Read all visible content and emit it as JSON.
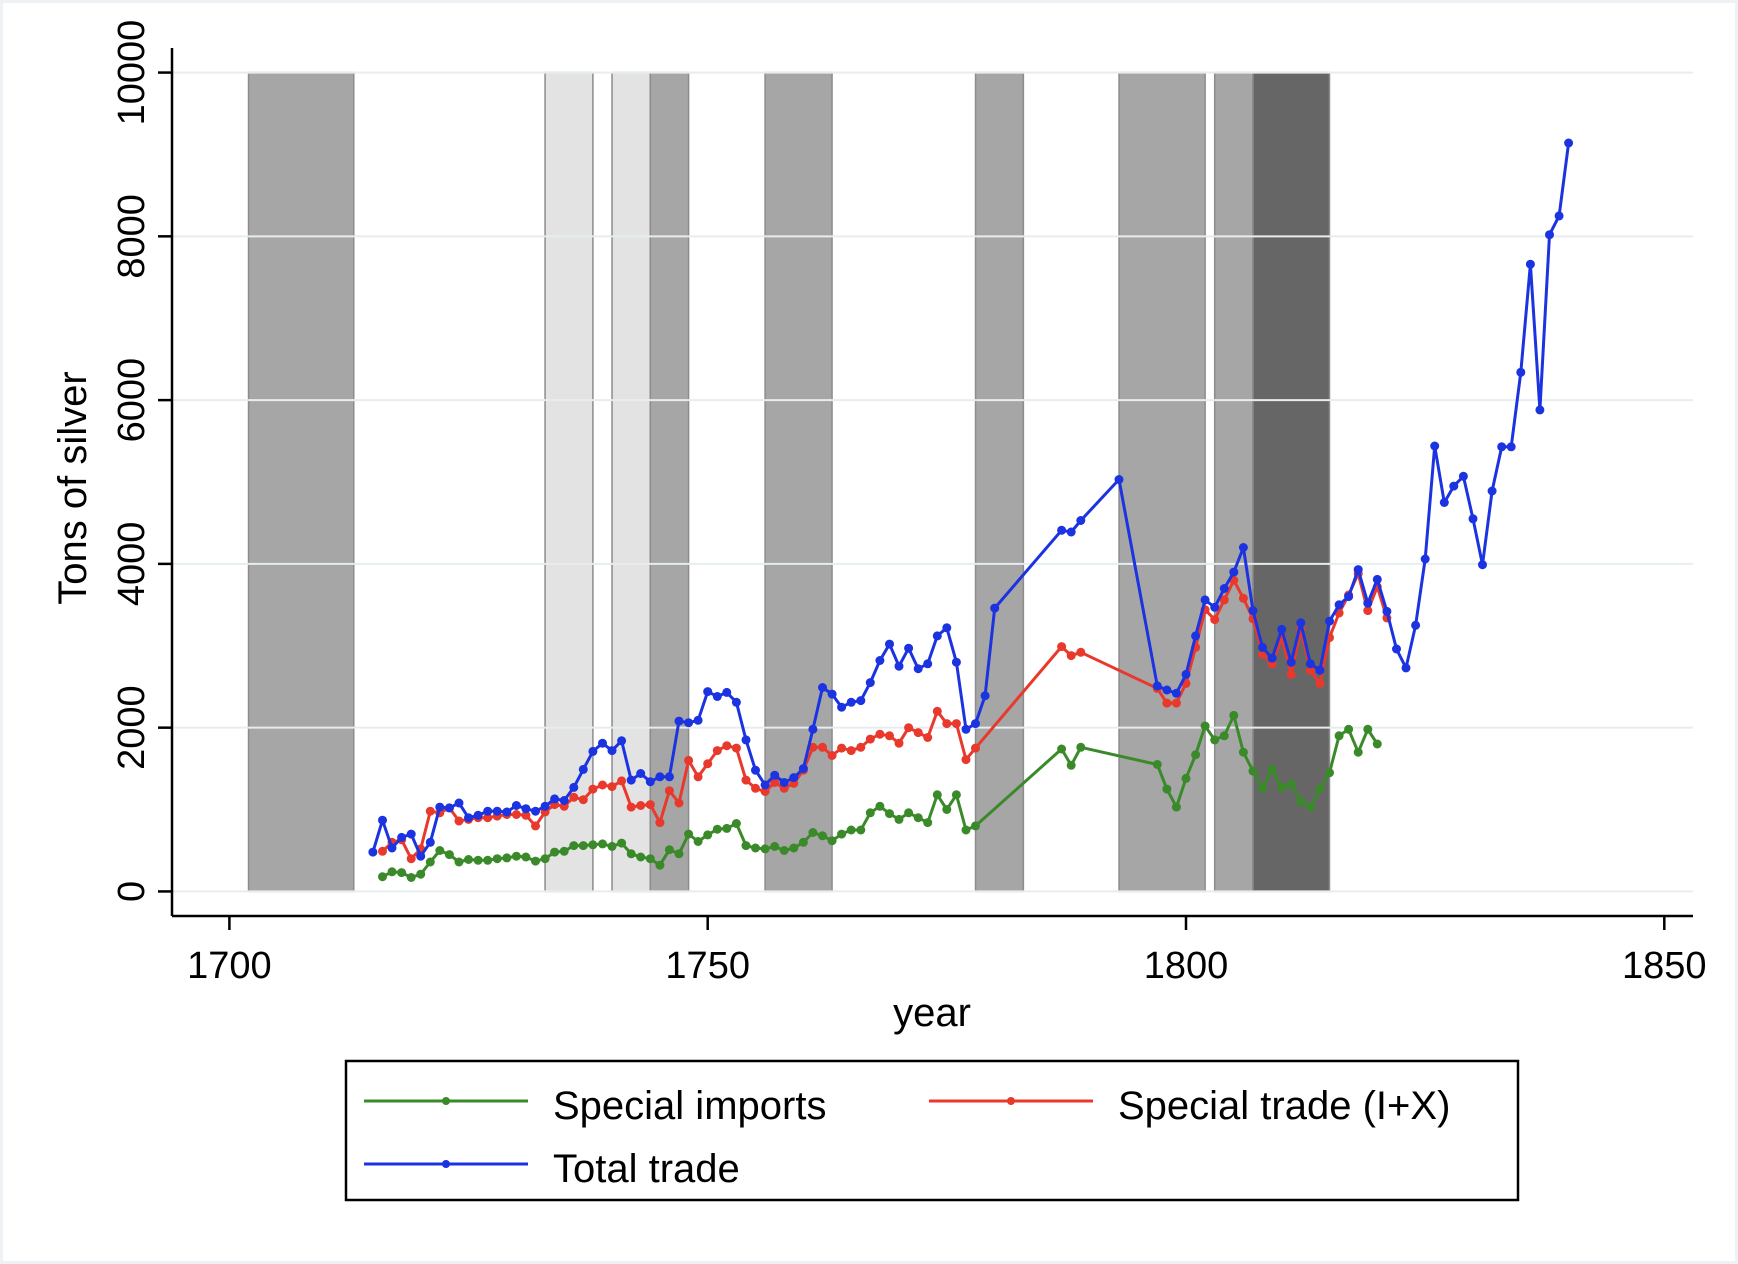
{
  "chart_data": {
    "type": "line",
    "xlabel": "year",
    "ylabel": "Tons of silver",
    "xlim": [
      1694,
      1853
    ],
    "ylim": [
      -300,
      10300
    ],
    "xticks": [
      1700,
      1750,
      1800,
      1850
    ],
    "xtick_labels": [
      "1700",
      "1750",
      "1800",
      "1850"
    ],
    "yticks": [
      0,
      2000,
      4000,
      6000,
      8000,
      10000
    ],
    "ytick_labels": [
      "0",
      "2000",
      "4000",
      "6000",
      "8000",
      "10000"
    ],
    "grid": "horizontal",
    "legend_placement": "bottom",
    "shaded_periods": [
      {
        "start": 1702,
        "end": 1713,
        "shade": "#a6a6a6"
      },
      {
        "start": 1733,
        "end": 1738,
        "shade": "#e3e3e3"
      },
      {
        "start": 1740,
        "end": 1744,
        "shade": "#e3e3e3"
      },
      {
        "start": 1744,
        "end": 1748,
        "shade": "#a6a6a6"
      },
      {
        "start": 1756,
        "end": 1763,
        "shade": "#a6a6a6"
      },
      {
        "start": 1778,
        "end": 1783,
        "shade": "#a6a6a6"
      },
      {
        "start": 1793,
        "end": 1802,
        "shade": "#a6a6a6"
      },
      {
        "start": 1803,
        "end": 1807,
        "shade": "#a6a6a6"
      },
      {
        "start": 1807,
        "end": 1815,
        "shade": "#666666"
      }
    ],
    "series": [
      {
        "name": "Special imports",
        "color": "#3a8a2a",
        "points": [
          [
            1716,
            180
          ],
          [
            1717,
            240
          ],
          [
            1718,
            230
          ],
          [
            1719,
            170
          ],
          [
            1720,
            210
          ],
          [
            1721,
            360
          ],
          [
            1722,
            500
          ],
          [
            1723,
            450
          ],
          [
            1724,
            360
          ],
          [
            1725,
            390
          ],
          [
            1726,
            380
          ],
          [
            1727,
            380
          ],
          [
            1728,
            400
          ],
          [
            1729,
            410
          ],
          [
            1730,
            430
          ],
          [
            1731,
            420
          ],
          [
            1732,
            370
          ],
          [
            1733,
            400
          ],
          [
            1734,
            480
          ],
          [
            1735,
            490
          ],
          [
            1736,
            560
          ],
          [
            1737,
            560
          ],
          [
            1738,
            570
          ],
          [
            1739,
            580
          ],
          [
            1740,
            550
          ],
          [
            1741,
            590
          ],
          [
            1742,
            460
          ],
          [
            1743,
            420
          ],
          [
            1744,
            400
          ],
          [
            1745,
            320
          ],
          [
            1746,
            510
          ],
          [
            1747,
            460
          ],
          [
            1748,
            700
          ],
          [
            1749,
            610
          ],
          [
            1750,
            690
          ],
          [
            1751,
            760
          ],
          [
            1752,
            770
          ],
          [
            1753,
            830
          ],
          [
            1754,
            560
          ],
          [
            1755,
            530
          ],
          [
            1756,
            520
          ],
          [
            1757,
            550
          ],
          [
            1758,
            500
          ],
          [
            1759,
            530
          ],
          [
            1760,
            600
          ],
          [
            1761,
            720
          ],
          [
            1762,
            680
          ],
          [
            1763,
            620
          ],
          [
            1764,
            700
          ],
          [
            1765,
            750
          ],
          [
            1766,
            750
          ],
          [
            1767,
            960
          ],
          [
            1768,
            1040
          ],
          [
            1769,
            950
          ],
          [
            1770,
            880
          ],
          [
            1771,
            960
          ],
          [
            1772,
            900
          ],
          [
            1773,
            840
          ],
          [
            1774,
            1180
          ],
          [
            1775,
            1000
          ],
          [
            1776,
            1180
          ],
          [
            1777,
            750
          ],
          [
            1778,
            800
          ],
          [
            1787,
            1740
          ],
          [
            1788,
            1540
          ],
          [
            1789,
            1760
          ],
          [
            1797,
            1550
          ],
          [
            1798,
            1250
          ],
          [
            1799,
            1030
          ],
          [
            1800,
            1380
          ],
          [
            1801,
            1670
          ],
          [
            1802,
            2020
          ],
          [
            1803,
            1850
          ],
          [
            1804,
            1900
          ],
          [
            1805,
            2150
          ],
          [
            1806,
            1700
          ],
          [
            1807,
            1470
          ],
          [
            1808,
            1260
          ],
          [
            1809,
            1490
          ],
          [
            1810,
            1270
          ],
          [
            1811,
            1310
          ],
          [
            1812,
            1100
          ],
          [
            1813,
            1030
          ],
          [
            1814,
            1250
          ],
          [
            1815,
            1450
          ],
          [
            1816,
            1900
          ],
          [
            1817,
            1980
          ],
          [
            1818,
            1700
          ],
          [
            1819,
            1980
          ],
          [
            1820,
            1800
          ]
        ]
      },
      {
        "name": "Special trade (I+X)",
        "color": "#e8392c",
        "points": [
          [
            1716,
            490
          ],
          [
            1717,
            600
          ],
          [
            1718,
            630
          ],
          [
            1719,
            400
          ],
          [
            1720,
            520
          ],
          [
            1721,
            980
          ],
          [
            1722,
            960
          ],
          [
            1723,
            1020
          ],
          [
            1724,
            860
          ],
          [
            1725,
            880
          ],
          [
            1726,
            900
          ],
          [
            1727,
            900
          ],
          [
            1728,
            920
          ],
          [
            1729,
            940
          ],
          [
            1730,
            940
          ],
          [
            1731,
            930
          ],
          [
            1732,
            800
          ],
          [
            1733,
            970
          ],
          [
            1734,
            1060
          ],
          [
            1735,
            1040
          ],
          [
            1736,
            1150
          ],
          [
            1737,
            1120
          ],
          [
            1738,
            1250
          ],
          [
            1739,
            1300
          ],
          [
            1740,
            1280
          ],
          [
            1741,
            1350
          ],
          [
            1742,
            1030
          ],
          [
            1743,
            1050
          ],
          [
            1744,
            1060
          ],
          [
            1745,
            840
          ],
          [
            1746,
            1230
          ],
          [
            1747,
            1080
          ],
          [
            1748,
            1600
          ],
          [
            1749,
            1400
          ],
          [
            1750,
            1560
          ],
          [
            1751,
            1720
          ],
          [
            1752,
            1780
          ],
          [
            1753,
            1750
          ],
          [
            1754,
            1360
          ],
          [
            1755,
            1260
          ],
          [
            1756,
            1220
          ],
          [
            1757,
            1330
          ],
          [
            1758,
            1260
          ],
          [
            1759,
            1320
          ],
          [
            1760,
            1480
          ],
          [
            1761,
            1760
          ],
          [
            1762,
            1760
          ],
          [
            1763,
            1660
          ],
          [
            1764,
            1750
          ],
          [
            1765,
            1720
          ],
          [
            1766,
            1760
          ],
          [
            1767,
            1860
          ],
          [
            1768,
            1920
          ],
          [
            1769,
            1900
          ],
          [
            1770,
            1810
          ],
          [
            1771,
            2000
          ],
          [
            1772,
            1940
          ],
          [
            1773,
            1880
          ],
          [
            1774,
            2200
          ],
          [
            1775,
            2050
          ],
          [
            1776,
            2050
          ],
          [
            1777,
            1610
          ],
          [
            1778,
            1750
          ],
          [
            1787,
            2990
          ],
          [
            1788,
            2880
          ],
          [
            1789,
            2920
          ],
          [
            1797,
            2480
          ],
          [
            1798,
            2300
          ],
          [
            1799,
            2300
          ],
          [
            1800,
            2540
          ],
          [
            1801,
            2980
          ],
          [
            1802,
            3440
          ],
          [
            1803,
            3320
          ],
          [
            1804,
            3560
          ],
          [
            1805,
            3800
          ],
          [
            1806,
            3580
          ],
          [
            1807,
            3330
          ],
          [
            1808,
            2900
          ],
          [
            1809,
            2780
          ],
          [
            1810,
            3100
          ],
          [
            1811,
            2650
          ],
          [
            1812,
            3200
          ],
          [
            1813,
            2700
          ],
          [
            1814,
            2540
          ],
          [
            1815,
            3100
          ],
          [
            1816,
            3400
          ],
          [
            1817,
            3620
          ],
          [
            1818,
            3880
          ],
          [
            1819,
            3430
          ],
          [
            1820,
            3720
          ],
          [
            1821,
            3340
          ]
        ]
      },
      {
        "name": "Total trade",
        "color": "#1b33e0",
        "points": [
          [
            1715,
            480
          ],
          [
            1716,
            870
          ],
          [
            1717,
            530
          ],
          [
            1718,
            660
          ],
          [
            1719,
            700
          ],
          [
            1720,
            430
          ],
          [
            1721,
            600
          ],
          [
            1722,
            1030
          ],
          [
            1723,
            1020
          ],
          [
            1724,
            1080
          ],
          [
            1725,
            900
          ],
          [
            1726,
            930
          ],
          [
            1727,
            980
          ],
          [
            1728,
            980
          ],
          [
            1729,
            970
          ],
          [
            1730,
            1050
          ],
          [
            1731,
            1010
          ],
          [
            1732,
            980
          ],
          [
            1733,
            1040
          ],
          [
            1734,
            1130
          ],
          [
            1735,
            1110
          ],
          [
            1736,
            1270
          ],
          [
            1737,
            1490
          ],
          [
            1738,
            1710
          ],
          [
            1739,
            1810
          ],
          [
            1740,
            1720
          ],
          [
            1741,
            1840
          ],
          [
            1742,
            1360
          ],
          [
            1743,
            1440
          ],
          [
            1744,
            1340
          ],
          [
            1745,
            1400
          ],
          [
            1746,
            1400
          ],
          [
            1747,
            2080
          ],
          [
            1748,
            2060
          ],
          [
            1749,
            2090
          ],
          [
            1750,
            2440
          ],
          [
            1751,
            2380
          ],
          [
            1752,
            2430
          ],
          [
            1753,
            2310
          ],
          [
            1754,
            1850
          ],
          [
            1755,
            1480
          ],
          [
            1756,
            1300
          ],
          [
            1757,
            1420
          ],
          [
            1758,
            1330
          ],
          [
            1759,
            1390
          ],
          [
            1760,
            1500
          ],
          [
            1761,
            1980
          ],
          [
            1762,
            2490
          ],
          [
            1763,
            2410
          ],
          [
            1764,
            2250
          ],
          [
            1765,
            2310
          ],
          [
            1766,
            2330
          ],
          [
            1767,
            2550
          ],
          [
            1768,
            2820
          ],
          [
            1769,
            3020
          ],
          [
            1770,
            2750
          ],
          [
            1771,
            2970
          ],
          [
            1772,
            2720
          ],
          [
            1773,
            2780
          ],
          [
            1774,
            3120
          ],
          [
            1775,
            3220
          ],
          [
            1776,
            2800
          ],
          [
            1777,
            1980
          ],
          [
            1778,
            2050
          ],
          [
            1779,
            2390
          ],
          [
            1780,
            3460
          ],
          [
            1787,
            4410
          ],
          [
            1788,
            4390
          ],
          [
            1789,
            4530
          ],
          [
            1793,
            5030
          ],
          [
            1797,
            2510
          ],
          [
            1798,
            2460
          ],
          [
            1799,
            2420
          ],
          [
            1800,
            2650
          ],
          [
            1801,
            3120
          ],
          [
            1802,
            3560
          ],
          [
            1803,
            3470
          ],
          [
            1804,
            3700
          ],
          [
            1805,
            3900
          ],
          [
            1806,
            4200
          ],
          [
            1807,
            3430
          ],
          [
            1808,
            2980
          ],
          [
            1809,
            2850
          ],
          [
            1810,
            3200
          ],
          [
            1811,
            2800
          ],
          [
            1812,
            3280
          ],
          [
            1813,
            2780
          ],
          [
            1814,
            2700
          ],
          [
            1815,
            3300
          ],
          [
            1816,
            3500
          ],
          [
            1817,
            3600
          ],
          [
            1818,
            3930
          ],
          [
            1819,
            3520
          ],
          [
            1820,
            3810
          ],
          [
            1821,
            3420
          ],
          [
            1822,
            2960
          ],
          [
            1823,
            2730
          ],
          [
            1824,
            3250
          ],
          [
            1825,
            4060
          ],
          [
            1826,
            5440
          ],
          [
            1827,
            4750
          ],
          [
            1828,
            4950
          ],
          [
            1829,
            5070
          ],
          [
            1830,
            4550
          ],
          [
            1831,
            3990
          ],
          [
            1832,
            4890
          ],
          [
            1833,
            5430
          ],
          [
            1834,
            5430
          ],
          [
            1835,
            6340
          ],
          [
            1836,
            7660
          ],
          [
            1837,
            5880
          ],
          [
            1838,
            8020
          ],
          [
            1839,
            8250
          ],
          [
            1840,
            9140
          ]
        ]
      }
    ]
  }
}
